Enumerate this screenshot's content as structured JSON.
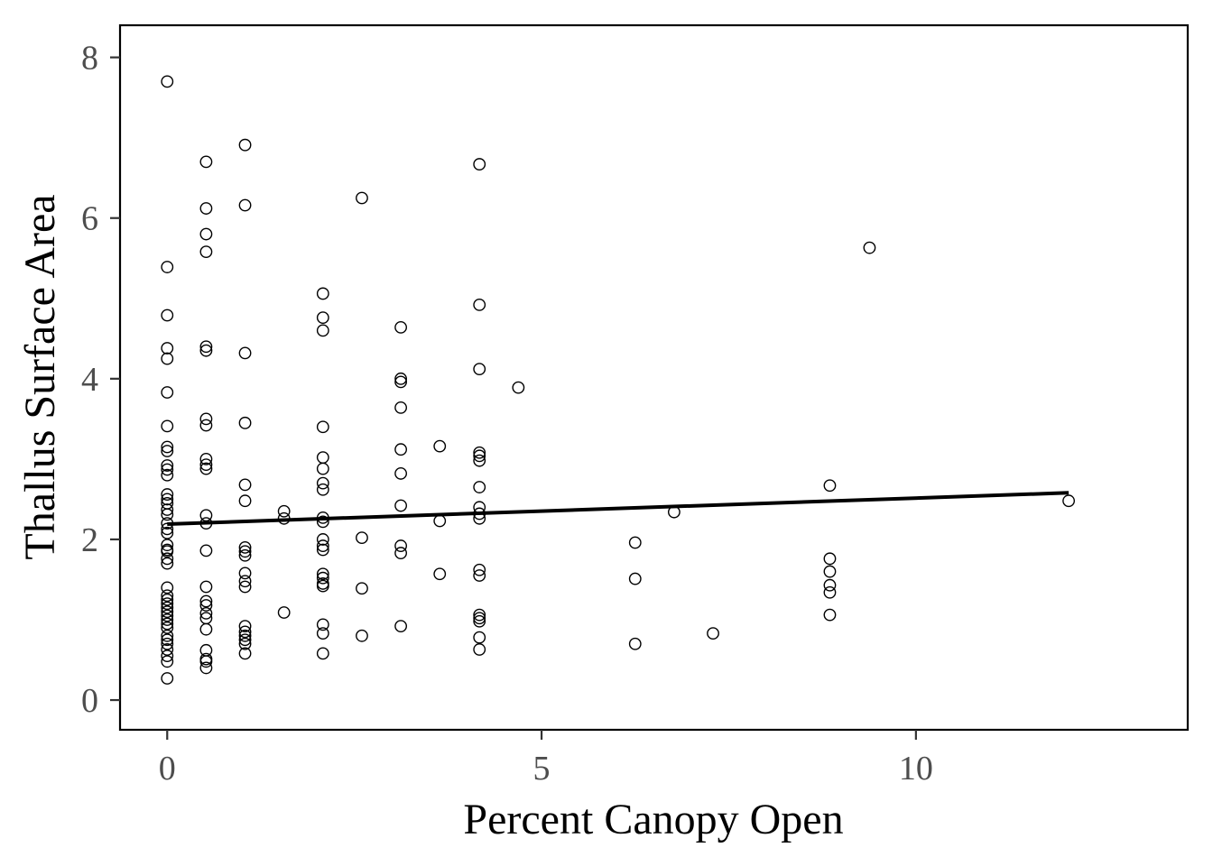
{
  "chart_data": {
    "type": "scatter",
    "xlabel": "Percent Canopy Open",
    "ylabel": "Thallus Surface Area",
    "xlim": [
      -0.63,
      13.63
    ],
    "ylim": [
      -0.37,
      8.4
    ],
    "xticks": [
      0,
      5,
      10
    ],
    "yticks": [
      0,
      2,
      4,
      6,
      8
    ],
    "grid": false,
    "colors": {
      "points": "#000000",
      "line": "#000000",
      "tick_text": "#4d4d4d"
    },
    "fit_line": {
      "x": [
        0,
        12.04
      ],
      "y": [
        2.19,
        2.58
      ]
    },
    "points": [
      [
        0,
        7.7
      ],
      [
        0,
        5.39
      ],
      [
        0,
        4.79
      ],
      [
        0,
        4.38
      ],
      [
        0,
        4.25
      ],
      [
        0,
        3.83
      ],
      [
        0,
        3.41
      ],
      [
        0,
        3.15
      ],
      [
        0,
        3.1
      ],
      [
        0,
        2.92
      ],
      [
        0,
        2.87
      ],
      [
        0,
        2.8
      ],
      [
        0,
        2.56
      ],
      [
        0,
        2.5
      ],
      [
        0,
        2.45
      ],
      [
        0,
        2.37
      ],
      [
        0,
        2.31
      ],
      [
        0,
        2.2
      ],
      [
        0,
        2.13
      ],
      [
        0,
        2.08
      ],
      [
        0,
        1.93
      ],
      [
        0,
        1.87
      ],
      [
        0,
        1.85
      ],
      [
        0,
        1.76
      ],
      [
        0,
        1.7
      ],
      [
        0,
        1.4
      ],
      [
        0,
        1.3
      ],
      [
        0,
        1.25
      ],
      [
        0,
        1.2
      ],
      [
        0,
        1.15
      ],
      [
        0,
        1.1
      ],
      [
        0,
        1.05
      ],
      [
        0,
        1.0
      ],
      [
        0,
        0.95
      ],
      [
        0,
        0.9
      ],
      [
        0,
        0.8
      ],
      [
        0,
        0.75
      ],
      [
        0,
        0.7
      ],
      [
        0,
        0.63
      ],
      [
        0,
        0.55
      ],
      [
        0,
        0.48
      ],
      [
        0,
        0.27
      ],
      [
        0.52,
        6.7
      ],
      [
        0.52,
        6.12
      ],
      [
        0.52,
        5.8
      ],
      [
        0.52,
        5.58
      ],
      [
        0.52,
        4.4
      ],
      [
        0.52,
        4.35
      ],
      [
        0.52,
        3.5
      ],
      [
        0.52,
        3.42
      ],
      [
        0.52,
        3.0
      ],
      [
        0.52,
        2.93
      ],
      [
        0.52,
        2.88
      ],
      [
        0.52,
        2.3
      ],
      [
        0.52,
        2.2
      ],
      [
        0.52,
        1.86
      ],
      [
        0.52,
        1.41
      ],
      [
        0.52,
        1.23
      ],
      [
        0.52,
        1.18
      ],
      [
        0.52,
        1.08
      ],
      [
        0.52,
        1.02
      ],
      [
        0.52,
        0.88
      ],
      [
        0.52,
        0.62
      ],
      [
        0.52,
        0.51
      ],
      [
        0.52,
        0.48
      ],
      [
        0.52,
        0.4
      ],
      [
        1.04,
        6.91
      ],
      [
        1.04,
        6.16
      ],
      [
        1.04,
        4.32
      ],
      [
        1.04,
        3.45
      ],
      [
        1.04,
        2.68
      ],
      [
        1.04,
        2.48
      ],
      [
        1.04,
        1.9
      ],
      [
        1.04,
        1.85
      ],
      [
        1.04,
        1.8
      ],
      [
        1.04,
        1.58
      ],
      [
        1.04,
        1.48
      ],
      [
        1.04,
        1.41
      ],
      [
        1.04,
        0.92
      ],
      [
        1.04,
        0.85
      ],
      [
        1.04,
        0.8
      ],
      [
        1.04,
        0.75
      ],
      [
        1.04,
        0.7
      ],
      [
        1.04,
        0.58
      ],
      [
        1.56,
        2.35
      ],
      [
        1.56,
        2.26
      ],
      [
        1.56,
        1.09
      ],
      [
        2.08,
        5.06
      ],
      [
        2.08,
        4.76
      ],
      [
        2.08,
        4.6
      ],
      [
        2.08,
        3.4
      ],
      [
        2.08,
        3.02
      ],
      [
        2.08,
        2.88
      ],
      [
        2.08,
        2.7
      ],
      [
        2.08,
        2.62
      ],
      [
        2.08,
        2.27
      ],
      [
        2.08,
        2.22
      ],
      [
        2.08,
        2.0
      ],
      [
        2.08,
        1.92
      ],
      [
        2.08,
        1.87
      ],
      [
        2.08,
        1.57
      ],
      [
        2.08,
        1.52
      ],
      [
        2.08,
        1.45
      ],
      [
        2.08,
        1.42
      ],
      [
        2.08,
        0.94
      ],
      [
        2.08,
        0.83
      ],
      [
        2.08,
        0.58
      ],
      [
        2.6,
        6.25
      ],
      [
        2.6,
        2.02
      ],
      [
        2.6,
        1.39
      ],
      [
        2.6,
        0.8
      ],
      [
        3.12,
        4.64
      ],
      [
        3.12,
        4.0
      ],
      [
        3.12,
        3.96
      ],
      [
        3.12,
        3.64
      ],
      [
        3.12,
        3.12
      ],
      [
        3.12,
        2.82
      ],
      [
        3.12,
        2.42
      ],
      [
        3.12,
        1.92
      ],
      [
        3.12,
        1.83
      ],
      [
        3.12,
        0.92
      ],
      [
        3.64,
        3.16
      ],
      [
        3.64,
        2.23
      ],
      [
        3.64,
        1.57
      ],
      [
        4.17,
        6.67
      ],
      [
        4.17,
        4.92
      ],
      [
        4.17,
        4.12
      ],
      [
        4.17,
        3.08
      ],
      [
        4.17,
        3.04
      ],
      [
        4.17,
        2.98
      ],
      [
        4.17,
        2.65
      ],
      [
        4.17,
        2.4
      ],
      [
        4.17,
        2.32
      ],
      [
        4.17,
        2.26
      ],
      [
        4.17,
        1.62
      ],
      [
        4.17,
        1.55
      ],
      [
        4.17,
        1.06
      ],
      [
        4.17,
        1.02
      ],
      [
        4.17,
        0.98
      ],
      [
        4.17,
        0.78
      ],
      [
        4.17,
        0.63
      ],
      [
        4.69,
        3.89
      ],
      [
        6.25,
        1.96
      ],
      [
        6.25,
        1.51
      ],
      [
        6.25,
        0.7
      ],
      [
        6.77,
        2.34
      ],
      [
        7.29,
        0.83
      ],
      [
        8.85,
        2.67
      ],
      [
        8.85,
        1.76
      ],
      [
        8.85,
        1.6
      ],
      [
        8.85,
        1.43
      ],
      [
        8.85,
        1.34
      ],
      [
        8.85,
        1.06
      ],
      [
        9.38,
        5.63
      ],
      [
        12.04,
        2.48
      ]
    ]
  }
}
